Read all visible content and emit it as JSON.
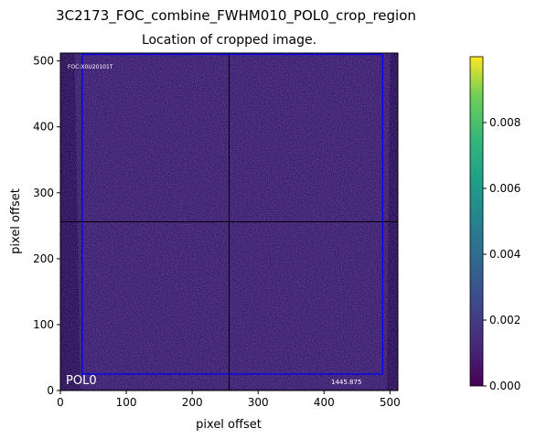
{
  "figure": {
    "suptitle": "3C2173_FOC_combine_FWHM010_POL0_crop_region"
  },
  "chart_data": {
    "type": "heatmap",
    "title": "Location of cropped image.",
    "xlabel": "pixel offset",
    "ylabel": "pixel offset",
    "xlim": [
      0,
      512
    ],
    "ylim": [
      0,
      512
    ],
    "xticks": [
      0,
      100,
      200,
      300,
      400,
      500
    ],
    "yticks": [
      0,
      100,
      200,
      300,
      400,
      500
    ],
    "colormap": "viridis",
    "colorbar": {
      "range": [
        0,
        0.01
      ],
      "ticks": [
        0.0,
        0.002,
        0.004,
        0.006,
        0.008
      ],
      "tick_labels": [
        "0.000",
        "0.002",
        "0.004",
        "0.006",
        "0.008"
      ]
    },
    "crop_rectangle": {
      "x0": 33,
      "y0": 25,
      "x1": 489,
      "y1": 510,
      "color": "#0000ff"
    },
    "crosshair": {
      "x": 256,
      "y": 256,
      "color": "#000000"
    },
    "annotations": {
      "header_text": "FOC:X0U20101T",
      "pol_label": "POL0",
      "exptime_text": "1445.875"
    },
    "background_color": "#3c1a6e",
    "edge_color": "#2a0a55"
  }
}
